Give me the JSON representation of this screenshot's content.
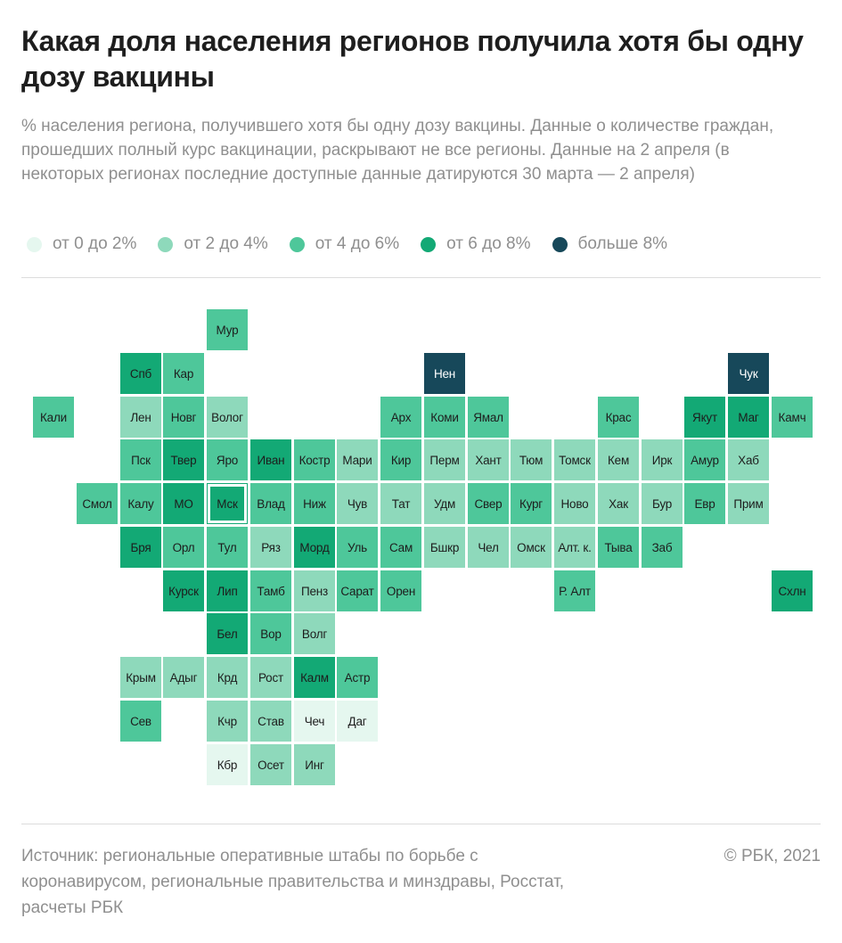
{
  "title": "Какая доля населения регионов получила хотя бы одну дозу вакцины",
  "subtitle": "% населения региона, получившего хотя бы одну дозу вакцины. Данные о количестве граждан, прошедших полный курс вакцинации, раскрывают не все регионы. Данные на 2 апреля (в некоторых регионах последние доступные данные датируются 30 марта — 2 апреля)",
  "legend": [
    {
      "label": "от 0 до 2%",
      "color": "#e5f7ef"
    },
    {
      "label": "от 2 до 4%",
      "color": "#8ed9bb"
    },
    {
      "label": "от 4 до 6%",
      "color": "#4ec79a"
    },
    {
      "label": "от 6 до 8%",
      "color": "#13a975"
    },
    {
      "label": "больше 8%",
      "color": "#17485a"
    }
  ],
  "chart_data": {
    "type": "heatmap",
    "title": "Какая доля населения регионов получила хотя бы одну дозу вакцины",
    "value_unit": "% населения",
    "categories": [
      "от 0 до 2%",
      "от 2 до 4%",
      "от 4 до 6%",
      "от 6 до 8%",
      "больше 8%"
    ],
    "highlighted": "Мск",
    "regions": [
      {
        "name": "Мур",
        "row": 0,
        "col": 4,
        "category": 3
      },
      {
        "name": "Спб",
        "row": 1,
        "col": 2,
        "category": 4
      },
      {
        "name": "Кар",
        "row": 1,
        "col": 3,
        "category": 3
      },
      {
        "name": "Нен",
        "row": 1,
        "col": 9,
        "category": 5
      },
      {
        "name": "Чук",
        "row": 1,
        "col": 16,
        "category": 5
      },
      {
        "name": "Кали",
        "row": 2,
        "col": 0,
        "category": 3
      },
      {
        "name": "Лен",
        "row": 2,
        "col": 2,
        "category": 2
      },
      {
        "name": "Новг",
        "row": 2,
        "col": 3,
        "category": 3
      },
      {
        "name": "Волог",
        "row": 2,
        "col": 4,
        "category": 2
      },
      {
        "name": "Арх",
        "row": 2,
        "col": 8,
        "category": 3
      },
      {
        "name": "Коми",
        "row": 2,
        "col": 9,
        "category": 3
      },
      {
        "name": "Ямал",
        "row": 2,
        "col": 10,
        "category": 3
      },
      {
        "name": "Крас",
        "row": 2,
        "col": 13,
        "category": 3
      },
      {
        "name": "Якут",
        "row": 2,
        "col": 15,
        "category": 4
      },
      {
        "name": "Маг",
        "row": 2,
        "col": 16,
        "category": 4
      },
      {
        "name": "Камч",
        "row": 2,
        "col": 17,
        "category": 3
      },
      {
        "name": "Пск",
        "row": 3,
        "col": 2,
        "category": 3
      },
      {
        "name": "Твер",
        "row": 3,
        "col": 3,
        "category": 4
      },
      {
        "name": "Яро",
        "row": 3,
        "col": 4,
        "category": 3
      },
      {
        "name": "Иван",
        "row": 3,
        "col": 5,
        "category": 4
      },
      {
        "name": "Костр",
        "row": 3,
        "col": 6,
        "category": 3
      },
      {
        "name": "Мари",
        "row": 3,
        "col": 7,
        "category": 2
      },
      {
        "name": "Кир",
        "row": 3,
        "col": 8,
        "category": 3
      },
      {
        "name": "Перм",
        "row": 3,
        "col": 9,
        "category": 2
      },
      {
        "name": "Хант",
        "row": 3,
        "col": 10,
        "category": 2
      },
      {
        "name": "Тюм",
        "row": 3,
        "col": 11,
        "category": 2
      },
      {
        "name": "Томск",
        "row": 3,
        "col": 12,
        "category": 2
      },
      {
        "name": "Кем",
        "row": 3,
        "col": 13,
        "category": 2
      },
      {
        "name": "Ирк",
        "row": 3,
        "col": 14,
        "category": 2
      },
      {
        "name": "Амур",
        "row": 3,
        "col": 15,
        "category": 3
      },
      {
        "name": "Хаб",
        "row": 3,
        "col": 16,
        "category": 2
      },
      {
        "name": "Смол",
        "row": 4,
        "col": 1,
        "category": 3
      },
      {
        "name": "Калу",
        "row": 4,
        "col": 2,
        "category": 3
      },
      {
        "name": "МО",
        "row": 4,
        "col": 3,
        "category": 4
      },
      {
        "name": "Мск",
        "row": 4,
        "col": 4,
        "category": 4
      },
      {
        "name": "Влад",
        "row": 4,
        "col": 5,
        "category": 3
      },
      {
        "name": "Ниж",
        "row": 4,
        "col": 6,
        "category": 3
      },
      {
        "name": "Чув",
        "row": 4,
        "col": 7,
        "category": 2
      },
      {
        "name": "Тат",
        "row": 4,
        "col": 8,
        "category": 2
      },
      {
        "name": "Удм",
        "row": 4,
        "col": 9,
        "category": 2
      },
      {
        "name": "Свер",
        "row": 4,
        "col": 10,
        "category": 3
      },
      {
        "name": "Кург",
        "row": 4,
        "col": 11,
        "category": 3
      },
      {
        "name": "Ново",
        "row": 4,
        "col": 12,
        "category": 2
      },
      {
        "name": "Хак",
        "row": 4,
        "col": 13,
        "category": 2
      },
      {
        "name": "Бур",
        "row": 4,
        "col": 14,
        "category": 2
      },
      {
        "name": "Евр",
        "row": 4,
        "col": 15,
        "category": 3
      },
      {
        "name": "Прим",
        "row": 4,
        "col": 16,
        "category": 2
      },
      {
        "name": "Бря",
        "row": 5,
        "col": 2,
        "category": 4
      },
      {
        "name": "Орл",
        "row": 5,
        "col": 3,
        "category": 3
      },
      {
        "name": "Тул",
        "row": 5,
        "col": 4,
        "category": 3
      },
      {
        "name": "Ряз",
        "row": 5,
        "col": 5,
        "category": 2
      },
      {
        "name": "Морд",
        "row": 5,
        "col": 6,
        "category": 4
      },
      {
        "name": "Уль",
        "row": 5,
        "col": 7,
        "category": 3
      },
      {
        "name": "Сам",
        "row": 5,
        "col": 8,
        "category": 3
      },
      {
        "name": "Бшкр",
        "row": 5,
        "col": 9,
        "category": 2
      },
      {
        "name": "Чел",
        "row": 5,
        "col": 10,
        "category": 2
      },
      {
        "name": "Омск",
        "row": 5,
        "col": 11,
        "category": 2
      },
      {
        "name": "Алт. к.",
        "row": 5,
        "col": 12,
        "category": 2
      },
      {
        "name": "Тыва",
        "row": 5,
        "col": 13,
        "category": 3
      },
      {
        "name": "Заб",
        "row": 5,
        "col": 14,
        "category": 3
      },
      {
        "name": "Курск",
        "row": 6,
        "col": 3,
        "category": 4
      },
      {
        "name": "Лип",
        "row": 6,
        "col": 4,
        "category": 4
      },
      {
        "name": "Тамб",
        "row": 6,
        "col": 5,
        "category": 3
      },
      {
        "name": "Пенз",
        "row": 6,
        "col": 6,
        "category": 2
      },
      {
        "name": "Сарат",
        "row": 6,
        "col": 7,
        "category": 3
      },
      {
        "name": "Орен",
        "row": 6,
        "col": 8,
        "category": 3
      },
      {
        "name": "Р. Алт",
        "row": 6,
        "col": 12,
        "category": 3
      },
      {
        "name": "Схлн",
        "row": 6,
        "col": 17,
        "category": 4
      },
      {
        "name": "Бел",
        "row": 7,
        "col": 4,
        "category": 4
      },
      {
        "name": "Вор",
        "row": 7,
        "col": 5,
        "category": 3
      },
      {
        "name": "Волг",
        "row": 7,
        "col": 6,
        "category": 2
      },
      {
        "name": "Крым",
        "row": 8,
        "col": 2,
        "category": 2
      },
      {
        "name": "Адыг",
        "row": 8,
        "col": 3,
        "category": 2
      },
      {
        "name": "Крд",
        "row": 8,
        "col": 4,
        "category": 2
      },
      {
        "name": "Рост",
        "row": 8,
        "col": 5,
        "category": 2
      },
      {
        "name": "Калм",
        "row": 8,
        "col": 6,
        "category": 4
      },
      {
        "name": "Астр",
        "row": 8,
        "col": 7,
        "category": 3
      },
      {
        "name": "Сев",
        "row": 9,
        "col": 2,
        "category": 3
      },
      {
        "name": "Кчр",
        "row": 9,
        "col": 4,
        "category": 2
      },
      {
        "name": "Став",
        "row": 9,
        "col": 5,
        "category": 2
      },
      {
        "name": "Чеч",
        "row": 9,
        "col": 6,
        "category": 1
      },
      {
        "name": "Даг",
        "row": 9,
        "col": 7,
        "category": 1
      },
      {
        "name": "Кбр",
        "row": 10,
        "col": 4,
        "category": 1
      },
      {
        "name": "Осет",
        "row": 10,
        "col": 5,
        "category": 2
      },
      {
        "name": "Инг",
        "row": 10,
        "col": 6,
        "category": 2
      }
    ]
  },
  "source": "Источник:  региональные оперативные штабы по борьбе с коронавирусом, региональные правительства и минздравы, Росстат, расчеты РБК",
  "copyright": "©  РБК, 2021"
}
